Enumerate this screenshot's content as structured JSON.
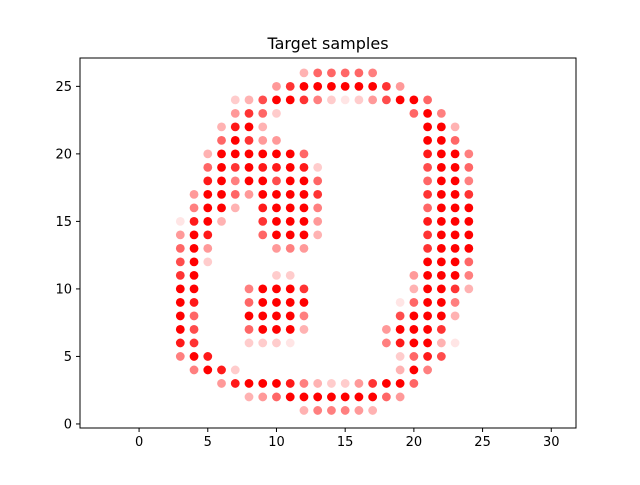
{
  "chart_data": {
    "type": "scatter",
    "title": "Target samples",
    "xlabel": "",
    "ylabel": "",
    "xlim": [
      -4.3,
      31.8
    ],
    "ylim": [
      -0.3,
      27.1
    ],
    "x_ticks": [
      0,
      5,
      10,
      15,
      20,
      25,
      30
    ],
    "y_ticks": [
      0,
      5,
      10,
      15,
      20,
      25
    ],
    "grid": false,
    "legend": "none",
    "marker_color": "#ff0000",
    "note_alpha": "per-point opacity 0–1",
    "points": [
      [
        12,
        26,
        0.3
      ],
      [
        13,
        26,
        0.6
      ],
      [
        14,
        26,
        0.6
      ],
      [
        15,
        26,
        0.6
      ],
      [
        16,
        26,
        0.6
      ],
      [
        17,
        26,
        0.5
      ],
      [
        10,
        25,
        0.4
      ],
      [
        11,
        25,
        0.8
      ],
      [
        12,
        25,
        1
      ],
      [
        13,
        25,
        1
      ],
      [
        14,
        25,
        1
      ],
      [
        15,
        25,
        1
      ],
      [
        16,
        25,
        1
      ],
      [
        17,
        25,
        1
      ],
      [
        18,
        25,
        0.8
      ],
      [
        19,
        25,
        0.4
      ],
      [
        7,
        24,
        0.2
      ],
      [
        8,
        24,
        0.3
      ],
      [
        9,
        24,
        0.7
      ],
      [
        10,
        24,
        1
      ],
      [
        11,
        24,
        1
      ],
      [
        12,
        24,
        0.8
      ],
      [
        13,
        24,
        0.5
      ],
      [
        14,
        24,
        0.2
      ],
      [
        15,
        24,
        0.1
      ],
      [
        16,
        24,
        0.2
      ],
      [
        17,
        24,
        0.4
      ],
      [
        18,
        24,
        0.7
      ],
      [
        19,
        24,
        1
      ],
      [
        20,
        24,
        1
      ],
      [
        21,
        24,
        0.6
      ],
      [
        7,
        23,
        0.4
      ],
      [
        8,
        23,
        0.8
      ],
      [
        9,
        23,
        0.6
      ],
      [
        10,
        23,
        0.2
      ],
      [
        20,
        23,
        0.6
      ],
      [
        21,
        23,
        1
      ],
      [
        22,
        23,
        0.5
      ],
      [
        6,
        22,
        0.3
      ],
      [
        7,
        22,
        0.9
      ],
      [
        8,
        22,
        1
      ],
      [
        9,
        22,
        0.3
      ],
      [
        21,
        22,
        1
      ],
      [
        22,
        22,
        1
      ],
      [
        23,
        22,
        0.3
      ],
      [
        6,
        21,
        0.6
      ],
      [
        7,
        21,
        1
      ],
      [
        8,
        21,
        0.8
      ],
      [
        9,
        21,
        0.4
      ],
      [
        10,
        21,
        0.4
      ],
      [
        21,
        21,
        1
      ],
      [
        22,
        21,
        1
      ],
      [
        23,
        21,
        0.6
      ],
      [
        5,
        20,
        0.3
      ],
      [
        6,
        20,
        1
      ],
      [
        7,
        20,
        1
      ],
      [
        8,
        20,
        1
      ],
      [
        9,
        20,
        1
      ],
      [
        10,
        20,
        1
      ],
      [
        11,
        20,
        1
      ],
      [
        12,
        20,
        0.6
      ],
      [
        21,
        20,
        0.9
      ],
      [
        22,
        20,
        1
      ],
      [
        23,
        20,
        1
      ],
      [
        24,
        20,
        0.5
      ],
      [
        5,
        19,
        0.6
      ],
      [
        6,
        19,
        1
      ],
      [
        7,
        19,
        0.8
      ],
      [
        8,
        19,
        1
      ],
      [
        9,
        19,
        0.9
      ],
      [
        10,
        19,
        0.9
      ],
      [
        11,
        19,
        1
      ],
      [
        12,
        19,
        0.9
      ],
      [
        13,
        19,
        0.2
      ],
      [
        21,
        19,
        0.7
      ],
      [
        22,
        19,
        1
      ],
      [
        23,
        19,
        1
      ],
      [
        24,
        19,
        0.6
      ],
      [
        5,
        18,
        0.9
      ],
      [
        6,
        18,
        1
      ],
      [
        7,
        18,
        0.5
      ],
      [
        8,
        18,
        1
      ],
      [
        9,
        18,
        1
      ],
      [
        10,
        18,
        0.7
      ],
      [
        11,
        18,
        1
      ],
      [
        12,
        18,
        1
      ],
      [
        13,
        18,
        0.6
      ],
      [
        21,
        18,
        0.6
      ],
      [
        22,
        18,
        1
      ],
      [
        23,
        18,
        1
      ],
      [
        24,
        18,
        0.5
      ],
      [
        4,
        17,
        0.4
      ],
      [
        5,
        17,
        1
      ],
      [
        6,
        17,
        1
      ],
      [
        7,
        17,
        0.6
      ],
      [
        8,
        17,
        0.4
      ],
      [
        9,
        17,
        1
      ],
      [
        10,
        17,
        1
      ],
      [
        11,
        17,
        1
      ],
      [
        12,
        17,
        1
      ],
      [
        13,
        17,
        0.8
      ],
      [
        21,
        17,
        0.8
      ],
      [
        22,
        17,
        1
      ],
      [
        23,
        17,
        1
      ],
      [
        24,
        17,
        0.8
      ],
      [
        4,
        16,
        0.5
      ],
      [
        5,
        16,
        1
      ],
      [
        6,
        16,
        1
      ],
      [
        7,
        16,
        0.3
      ],
      [
        9,
        16,
        0.9
      ],
      [
        10,
        16,
        1
      ],
      [
        11,
        16,
        1
      ],
      [
        12,
        16,
        1
      ],
      [
        13,
        16,
        0.5
      ],
      [
        21,
        16,
        0.6
      ],
      [
        22,
        16,
        1
      ],
      [
        23,
        16,
        1
      ],
      [
        24,
        16,
        1
      ],
      [
        3,
        15,
        0.1
      ],
      [
        4,
        15,
        0.9
      ],
      [
        5,
        15,
        1
      ],
      [
        6,
        15,
        0.3
      ],
      [
        9,
        15,
        0.8
      ],
      [
        10,
        15,
        1
      ],
      [
        11,
        15,
        1
      ],
      [
        12,
        15,
        1
      ],
      [
        13,
        15,
        0.4
      ],
      [
        21,
        15,
        0.9
      ],
      [
        22,
        15,
        1
      ],
      [
        23,
        15,
        1
      ],
      [
        24,
        15,
        1
      ],
      [
        3,
        14,
        0.4
      ],
      [
        4,
        14,
        1
      ],
      [
        5,
        14,
        0.9
      ],
      [
        9,
        14,
        0.6
      ],
      [
        10,
        14,
        1
      ],
      [
        11,
        14,
        1
      ],
      [
        12,
        14,
        1
      ],
      [
        13,
        14,
        0.3
      ],
      [
        21,
        14,
        0.8
      ],
      [
        22,
        14,
        1
      ],
      [
        23,
        14,
        1
      ],
      [
        24,
        14,
        1
      ],
      [
        3,
        13,
        0.6
      ],
      [
        4,
        13,
        1
      ],
      [
        5,
        13,
        0.4
      ],
      [
        10,
        13,
        0.4
      ],
      [
        11,
        13,
        0.5
      ],
      [
        12,
        13,
        0.4
      ],
      [
        21,
        13,
        0.8
      ],
      [
        22,
        13,
        1
      ],
      [
        23,
        13,
        1
      ],
      [
        24,
        13,
        1
      ],
      [
        3,
        12,
        0.7
      ],
      [
        4,
        12,
        1
      ],
      [
        5,
        12,
        0.2
      ],
      [
        21,
        12,
        1
      ],
      [
        22,
        12,
        1
      ],
      [
        23,
        12,
        1
      ],
      [
        24,
        12,
        0.6
      ],
      [
        3,
        11,
        0.8
      ],
      [
        4,
        11,
        1
      ],
      [
        10,
        11,
        0.2
      ],
      [
        11,
        11,
        0.2
      ],
      [
        20,
        11,
        0.4
      ],
      [
        21,
        11,
        1
      ],
      [
        22,
        11,
        1
      ],
      [
        23,
        11,
        1
      ],
      [
        24,
        11,
        0.5
      ],
      [
        3,
        10,
        1
      ],
      [
        4,
        10,
        1
      ],
      [
        8,
        10,
        0.5
      ],
      [
        9,
        10,
        1
      ],
      [
        10,
        10,
        1
      ],
      [
        11,
        10,
        1
      ],
      [
        12,
        10,
        0.8
      ],
      [
        20,
        10,
        0.3
      ],
      [
        21,
        10,
        1
      ],
      [
        22,
        10,
        1
      ],
      [
        23,
        10,
        0.8
      ],
      [
        24,
        10,
        0.3
      ],
      [
        3,
        9,
        1
      ],
      [
        4,
        9,
        0.9
      ],
      [
        8,
        9,
        0.6
      ],
      [
        9,
        9,
        1
      ],
      [
        10,
        9,
        1
      ],
      [
        11,
        9,
        1
      ],
      [
        12,
        9,
        1
      ],
      [
        19,
        9,
        0.1
      ],
      [
        20,
        9,
        0.6
      ],
      [
        21,
        9,
        1
      ],
      [
        22,
        9,
        1
      ],
      [
        23,
        9,
        0.5
      ],
      [
        3,
        8,
        1
      ],
      [
        4,
        8,
        0.6
      ],
      [
        8,
        8,
        1
      ],
      [
        9,
        8,
        1
      ],
      [
        10,
        8,
        1
      ],
      [
        11,
        8,
        1
      ],
      [
        12,
        8,
        0.5
      ],
      [
        19,
        8,
        0.7
      ],
      [
        20,
        8,
        1
      ],
      [
        21,
        8,
        1
      ],
      [
        22,
        8,
        1
      ],
      [
        23,
        8,
        0.3
      ],
      [
        3,
        7,
        1
      ],
      [
        4,
        7,
        0.7
      ],
      [
        8,
        7,
        0.6
      ],
      [
        9,
        7,
        1
      ],
      [
        10,
        7,
        1
      ],
      [
        11,
        7,
        1
      ],
      [
        12,
        7,
        0.3
      ],
      [
        18,
        7,
        0.4
      ],
      [
        19,
        7,
        1
      ],
      [
        20,
        7,
        1
      ],
      [
        21,
        7,
        1
      ],
      [
        22,
        7,
        0.8
      ],
      [
        3,
        6,
        0.9
      ],
      [
        4,
        6,
        0.8
      ],
      [
        8,
        6,
        0.2
      ],
      [
        9,
        6,
        0.2
      ],
      [
        10,
        6,
        0.2
      ],
      [
        11,
        6,
        0.1
      ],
      [
        18,
        6,
        0.5
      ],
      [
        19,
        6,
        0.9
      ],
      [
        20,
        6,
        1
      ],
      [
        21,
        6,
        1
      ],
      [
        22,
        6,
        0.3
      ],
      [
        23,
        6,
        0.1
      ],
      [
        3,
        5,
        0.5
      ],
      [
        4,
        5,
        1
      ],
      [
        5,
        5,
        0.9
      ],
      [
        19,
        5,
        0.2
      ],
      [
        20,
        5,
        0.6
      ],
      [
        21,
        5,
        0.9
      ],
      [
        22,
        5,
        0.7
      ],
      [
        4,
        4,
        0.5
      ],
      [
        5,
        4,
        1
      ],
      [
        6,
        4,
        0.9
      ],
      [
        7,
        4,
        0.2
      ],
      [
        19,
        4,
        0.3
      ],
      [
        20,
        4,
        1
      ],
      [
        21,
        4,
        0.5
      ],
      [
        6,
        3,
        0.4
      ],
      [
        7,
        3,
        0.9
      ],
      [
        8,
        3,
        1
      ],
      [
        9,
        3,
        1
      ],
      [
        10,
        3,
        1
      ],
      [
        11,
        3,
        0.9
      ],
      [
        12,
        3,
        0.5
      ],
      [
        13,
        3,
        0.3
      ],
      [
        14,
        3,
        0.2
      ],
      [
        15,
        3,
        0.2
      ],
      [
        16,
        3,
        0.4
      ],
      [
        17,
        3,
        0.8
      ],
      [
        18,
        3,
        1
      ],
      [
        19,
        3,
        1
      ],
      [
        20,
        3,
        0.6
      ],
      [
        8,
        2,
        0.3
      ],
      [
        9,
        2,
        0.4
      ],
      [
        10,
        2,
        0.6
      ],
      [
        11,
        2,
        1
      ],
      [
        12,
        2,
        1
      ],
      [
        13,
        2,
        1
      ],
      [
        14,
        2,
        1
      ],
      [
        15,
        2,
        1
      ],
      [
        16,
        2,
        1
      ],
      [
        17,
        2,
        1
      ],
      [
        18,
        2,
        0.6
      ],
      [
        19,
        2,
        0.4
      ],
      [
        12,
        1,
        0.3
      ],
      [
        13,
        1,
        0.5
      ],
      [
        14,
        1,
        0.5
      ],
      [
        15,
        1,
        0.5
      ],
      [
        16,
        1,
        0.4
      ],
      [
        17,
        1,
        0.3
      ]
    ]
  }
}
